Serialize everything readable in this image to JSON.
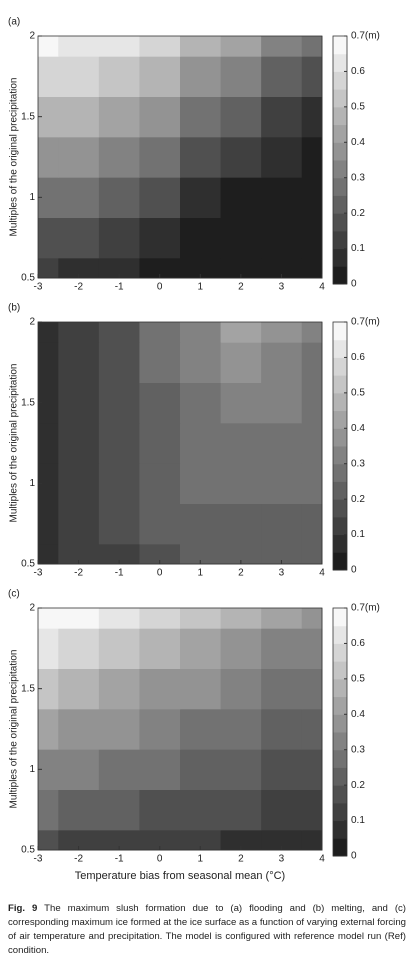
{
  "chart_data": [
    {
      "type": "contour",
      "panel_label": "(a)",
      "ylabel": "Multiples of the original precipitation",
      "x": [
        -3,
        -2,
        -1,
        0,
        1,
        2,
        3,
        4
      ],
      "y": [
        0.5,
        0.75,
        1,
        1.25,
        1.5,
        1.75,
        2
      ],
      "z": [
        [
          0.1,
          0.08,
          0.05,
          0.03,
          0.02,
          0.01,
          0,
          0
        ],
        [
          0.18,
          0.15,
          0.12,
          0.08,
          0.04,
          0.02,
          0.01,
          0
        ],
        [
          0.28,
          0.25,
          0.2,
          0.15,
          0.08,
          0.04,
          0.02,
          0.01
        ],
        [
          0.38,
          0.35,
          0.3,
          0.25,
          0.18,
          0.1,
          0.05,
          0.03
        ],
        [
          0.48,
          0.45,
          0.4,
          0.35,
          0.28,
          0.2,
          0.12,
          0.07
        ],
        [
          0.58,
          0.55,
          0.5,
          0.45,
          0.38,
          0.3,
          0.22,
          0.15
        ],
        [
          0.68,
          0.64,
          0.6,
          0.55,
          0.48,
          0.4,
          0.32,
          0.25
        ]
      ],
      "xlim": [
        -3,
        4
      ],
      "xticks": [
        -3,
        -2,
        -1,
        0,
        1,
        2,
        3,
        4
      ],
      "ylim": [
        0.5,
        2
      ],
      "yticks": [
        0.5,
        1,
        1.5,
        2
      ],
      "zlim": [
        0,
        0.7
      ],
      "zticks": [
        0,
        0.1,
        0.2,
        0.3,
        0.4,
        0.5,
        0.6,
        {
          "value": 0.7,
          "label": "0.7(m)"
        }
      ],
      "colormap": "gray"
    },
    {
      "type": "contour",
      "panel_label": "(b)",
      "ylabel": "Multiples of the original precipitation",
      "x": [
        -3,
        -2,
        -1,
        0,
        1,
        2,
        3,
        4
      ],
      "y": [
        0.5,
        0.75,
        1,
        1.25,
        1.5,
        1.75,
        2
      ],
      "z": [
        [
          0.07,
          0.1,
          0.14,
          0.18,
          0.2,
          0.21,
          0.21,
          0.21
        ],
        [
          0.08,
          0.11,
          0.16,
          0.2,
          0.22,
          0.23,
          0.23,
          0.23
        ],
        [
          0.08,
          0.12,
          0.17,
          0.22,
          0.25,
          0.25,
          0.25,
          0.25
        ],
        [
          0.08,
          0.12,
          0.18,
          0.23,
          0.27,
          0.28,
          0.28,
          0.26
        ],
        [
          0.08,
          0.12,
          0.18,
          0.24,
          0.28,
          0.32,
          0.3,
          0.27
        ],
        [
          0.08,
          0.12,
          0.18,
          0.25,
          0.3,
          0.36,
          0.32,
          0.28
        ],
        [
          0.08,
          0.12,
          0.18,
          0.25,
          0.32,
          0.42,
          0.35,
          0.3
        ]
      ],
      "xlim": [
        -3,
        4
      ],
      "xticks": [
        -3,
        -2,
        -1,
        0,
        1,
        2,
        3,
        4
      ],
      "ylim": [
        0.5,
        2
      ],
      "yticks": [
        0.5,
        1,
        1.5,
        2
      ],
      "zlim": [
        0,
        0.7
      ],
      "zticks": [
        0,
        0.1,
        0.2,
        0.3,
        0.4,
        0.5,
        0.6,
        {
          "value": 0.7,
          "label": "0.7(m)"
        }
      ],
      "colormap": "gray"
    },
    {
      "type": "contour",
      "panel_label": "(c)",
      "ylabel": "Multiples of the original precipitation",
      "xlabel": "Temperature bias from seasonal mean (°C)",
      "x": [
        -3,
        -2,
        -1,
        0,
        1,
        2,
        3,
        4
      ],
      "y": [
        0.5,
        0.75,
        1,
        1.25,
        1.5,
        1.75,
        2
      ],
      "z": [
        [
          0.15,
          0.14,
          0.13,
          0.12,
          0.1,
          0.09,
          0.09,
          0.08
        ],
        [
          0.25,
          0.23,
          0.21,
          0.19,
          0.17,
          0.15,
          0.14,
          0.13
        ],
        [
          0.34,
          0.31,
          0.28,
          0.25,
          0.22,
          0.2,
          0.18,
          0.16
        ],
        [
          0.42,
          0.38,
          0.35,
          0.32,
          0.28,
          0.25,
          0.22,
          0.2
        ],
        [
          0.5,
          0.47,
          0.43,
          0.39,
          0.35,
          0.31,
          0.28,
          0.25
        ],
        [
          0.6,
          0.56,
          0.52,
          0.48,
          0.43,
          0.38,
          0.34,
          0.3
        ],
        [
          0.68,
          0.65,
          0.61,
          0.57,
          0.52,
          0.47,
          0.42,
          0.38
        ]
      ],
      "xlim": [
        -3,
        4
      ],
      "xticks": [
        -3,
        -2,
        -1,
        0,
        1,
        2,
        3,
        4
      ],
      "ylim": [
        0.5,
        2
      ],
      "yticks": [
        0.5,
        1,
        1.5,
        2
      ],
      "zlim": [
        0,
        0.7
      ],
      "zticks": [
        0,
        0.1,
        0.2,
        0.3,
        0.4,
        0.5,
        0.6,
        {
          "value": 0.7,
          "label": "0.7(m)"
        }
      ],
      "colormap": "gray"
    }
  ],
  "caption": {
    "label": "Fig. 9",
    "text": "The maximum slush formation due to (a) flooding and (b) melting, and (c) corresponding maximum ice formed at the ice surface as a function of varying external forcing of air temperature and precipitation. The model is configured with reference model run (Ref) condition."
  }
}
